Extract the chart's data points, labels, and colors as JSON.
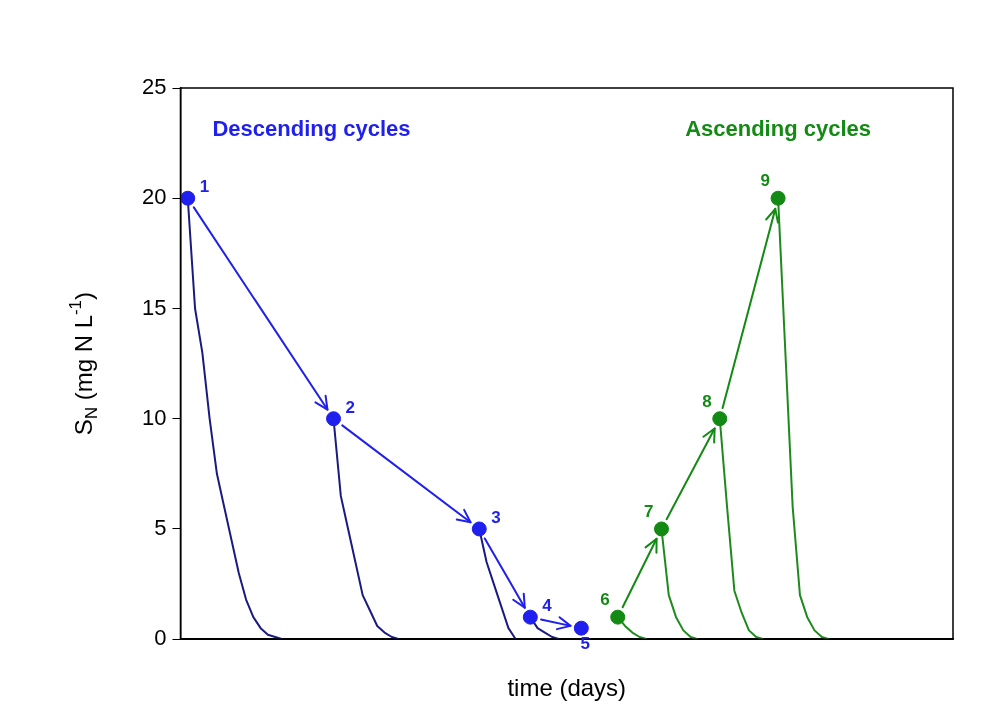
{
  "chart_data": {
    "type": "line",
    "xlabel": "time (days)",
    "ylabel": "S$_{N}$ (mg N L$^{-1}$)",
    "tick_labels": "y",
    "ylim": [
      0,
      25
    ],
    "yticks": [
      0,
      5,
      10,
      15,
      20,
      25
    ],
    "annotations": [
      "1",
      "2",
      "3",
      "4",
      "5",
      "6",
      "7",
      "8",
      "9"
    ],
    "categories": [
      null,
      null,
      null,
      null,
      null,
      null,
      null,
      null,
      null,
      null,
      null,
      null,
      null,
      null,
      null,
      null,
      null,
      null,
      null,
      null,
      null,
      null,
      null,
      null,
      null,
      null,
      null,
      null,
      null,
      null,
      null,
      null,
      null,
      null,
      null,
      null,
      null,
      null,
      null,
      null,
      null,
      null,
      null,
      null,
      null,
      null,
      null,
      null,
      null,
      null,
      null,
      null,
      null,
      null,
      null,
      null,
      null,
      null,
      null,
      null,
      null,
      null,
      null,
      null,
      null,
      null,
      null,
      null,
      null,
      null,
      null,
      null,
      null,
      null,
      null,
      null,
      null,
      null,
      null,
      null,
      null,
      null,
      null,
      null,
      null,
      null,
      null,
      null,
      null,
      null,
      null,
      null,
      null,
      null,
      null,
      null,
      null,
      null,
      null,
      null,
      null,
      null,
      null,
      null,
      null,
      null,
      null
    ],
    "series": [
      {
        "color": "#1a1a80",
        "values": [
          null,
          20,
          15,
          13,
          10,
          7.5,
          6,
          4.5,
          3,
          1.8,
          1,
          0.5,
          0.2,
          0.1,
          0,
          null,
          null,
          null,
          null,
          null,
          null,
          10,
          6.5,
          5,
          3.5,
          2,
          1.3,
          0.6,
          0.3,
          0.1,
          0,
          null,
          null,
          null,
          null,
          null,
          null,
          null,
          null,
          null,
          null,
          5,
          3.5,
          2.5,
          1.5,
          0.5,
          0,
          null,
          1,
          0.5,
          0.3,
          0.1,
          0,
          null,
          null,
          null,
          null,
          null,
          null,
          null,
          null,
          null,
          null,
          null,
          null,
          null,
          null,
          null,
          null,
          null,
          null,
          null,
          null,
          null,
          null,
          null,
          null,
          null,
          null,
          null,
          null,
          null,
          null,
          null,
          null,
          null,
          null,
          null,
          null,
          null,
          null,
          null,
          null,
          null,
          null,
          null,
          null,
          null,
          null,
          null,
          null,
          null,
          null,
          null,
          null,
          null,
          null
        ]
      },
      {
        "color": "#1e8a1e",
        "values": [
          null,
          null,
          null,
          null,
          null,
          null,
          null,
          null,
          null,
          null,
          null,
          null,
          null,
          null,
          null,
          null,
          null,
          null,
          null,
          null,
          null,
          null,
          null,
          null,
          null,
          null,
          null,
          null,
          null,
          null,
          null,
          null,
          null,
          null,
          null,
          null,
          null,
          null,
          null,
          null,
          null,
          null,
          null,
          null,
          null,
          null,
          null,
          null,
          null,
          null,
          null,
          null,
          null,
          null,
          null,
          null,
          null,
          null,
          null,
          null,
          1,
          0.6,
          0.3,
          0.1,
          0,
          null,
          5,
          2,
          1,
          0.4,
          0.1,
          0,
          null,
          null,
          10,
          6,
          2.2,
          1.2,
          0.4,
          0.1,
          0,
          null,
          20,
          13,
          6,
          2,
          1,
          0.4,
          0.1,
          0,
          null,
          null,
          null,
          null,
          null,
          null,
          null,
          null,
          null,
          null,
          null,
          null,
          null,
          null,
          null,
          null,
          null
        ]
      },
      {
        "name": "Descending cycles",
        "type": "scatter",
        "marker": "circle",
        "color": "#1f1fee",
        "values": [
          null,
          20,
          null,
          null,
          null,
          null,
          null,
          null,
          null,
          null,
          null,
          null,
          null,
          null,
          null,
          null,
          null,
          null,
          null,
          null,
          null,
          10,
          null,
          null,
          null,
          null,
          null,
          null,
          null,
          null,
          null,
          null,
          null,
          null,
          null,
          null,
          null,
          null,
          null,
          null,
          null,
          5,
          null,
          null,
          null,
          null,
          null,
          null,
          1,
          null,
          null,
          null,
          null,
          null,
          null,
          0.5,
          null,
          null,
          null,
          null,
          null,
          null,
          null,
          null,
          null,
          null,
          null,
          null,
          null,
          null,
          null,
          null,
          null,
          null,
          null,
          null,
          null,
          null,
          null,
          null,
          null,
          null,
          null,
          null,
          null,
          null,
          null,
          null,
          null,
          null,
          null,
          null,
          null,
          null,
          null,
          null,
          null,
          null,
          null,
          null,
          null,
          null,
          null,
          null,
          null,
          null,
          null
        ]
      },
      {
        "name": "Ascending cycles",
        "type": "scatter",
        "marker": "circle",
        "color": "#138a13",
        "values": [
          null,
          null,
          null,
          null,
          null,
          null,
          null,
          null,
          null,
          null,
          null,
          null,
          null,
          null,
          null,
          null,
          null,
          null,
          null,
          null,
          null,
          null,
          null,
          null,
          null,
          null,
          null,
          null,
          null,
          null,
          null,
          null,
          null,
          null,
          null,
          null,
          null,
          null,
          null,
          null,
          null,
          null,
          null,
          null,
          null,
          null,
          null,
          null,
          null,
          null,
          null,
          null,
          null,
          null,
          null,
          null,
          null,
          null,
          null,
          null,
          1,
          null,
          null,
          null,
          null,
          null,
          5,
          null,
          null,
          null,
          null,
          null,
          null,
          null,
          10,
          null,
          null,
          null,
          null,
          null,
          null,
          null,
          20,
          null,
          null,
          null,
          null,
          null,
          null,
          null,
          null,
          null,
          null,
          null,
          null,
          null,
          null,
          null,
          null,
          null,
          null,
          null,
          null,
          null,
          null,
          null,
          null
        ]
      }
    ]
  }
}
